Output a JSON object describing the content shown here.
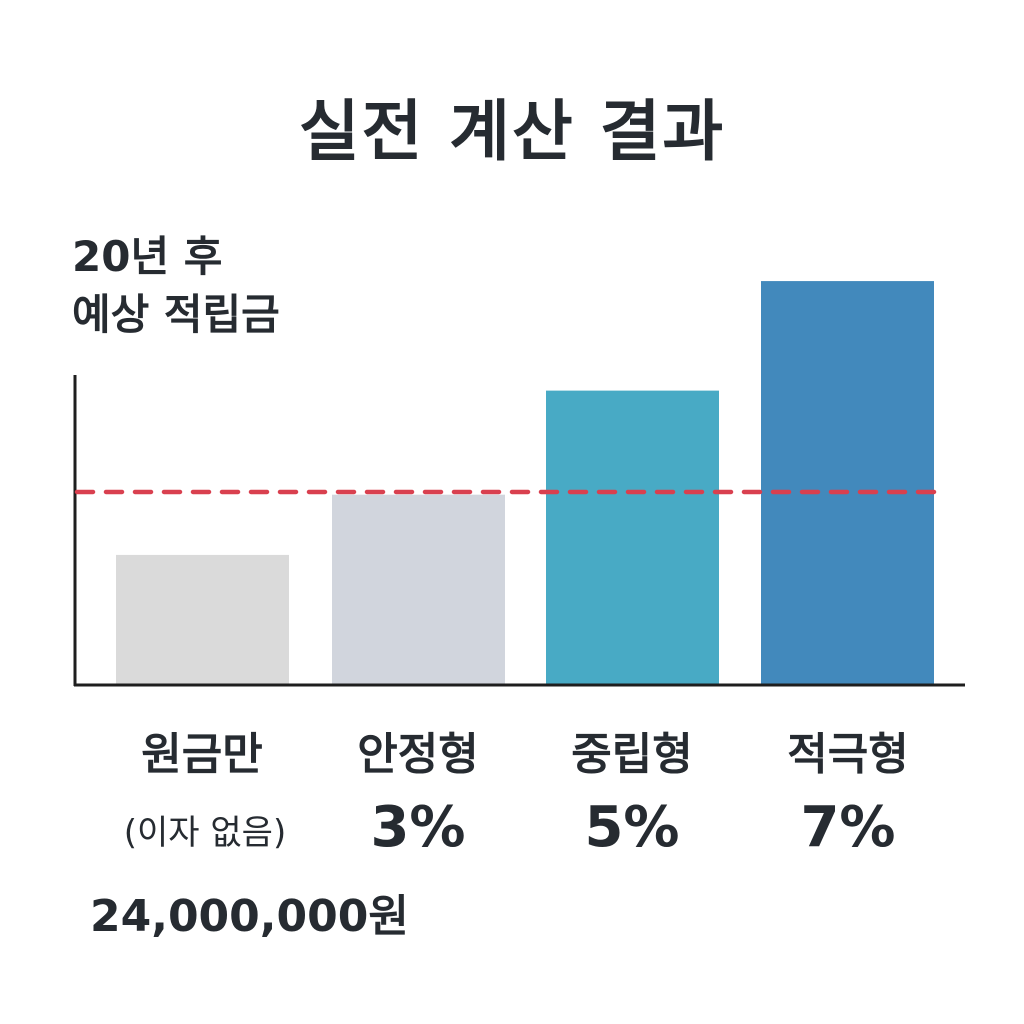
{
  "chart_data": {
    "type": "bar",
    "title": "실전 계산 결과",
    "ylabel_lines": [
      "20년 후",
      "예상 적립금"
    ],
    "categories": [
      {
        "name": "원금만",
        "sub": "(이자 없음)"
      },
      {
        "name": "안정형",
        "sub": "3%"
      },
      {
        "name": "중립형",
        "sub": "5%"
      },
      {
        "name": "적극형",
        "sub": "7%"
      }
    ],
    "values": [
      24000000,
      32800000,
      48000000,
      64000000
    ],
    "bar_colors": [
      "#dadada",
      "#d1d5dd",
      "#48aac5",
      "#4289bc"
    ],
    "reference_line": {
      "value": 33200000,
      "color": "#d9404f",
      "style": "dashed"
    },
    "ylim": [
      5000000,
      70000000
    ],
    "principal_label": "24,000,000원",
    "grid": false,
    "axis_color": "#1e1e1e"
  }
}
